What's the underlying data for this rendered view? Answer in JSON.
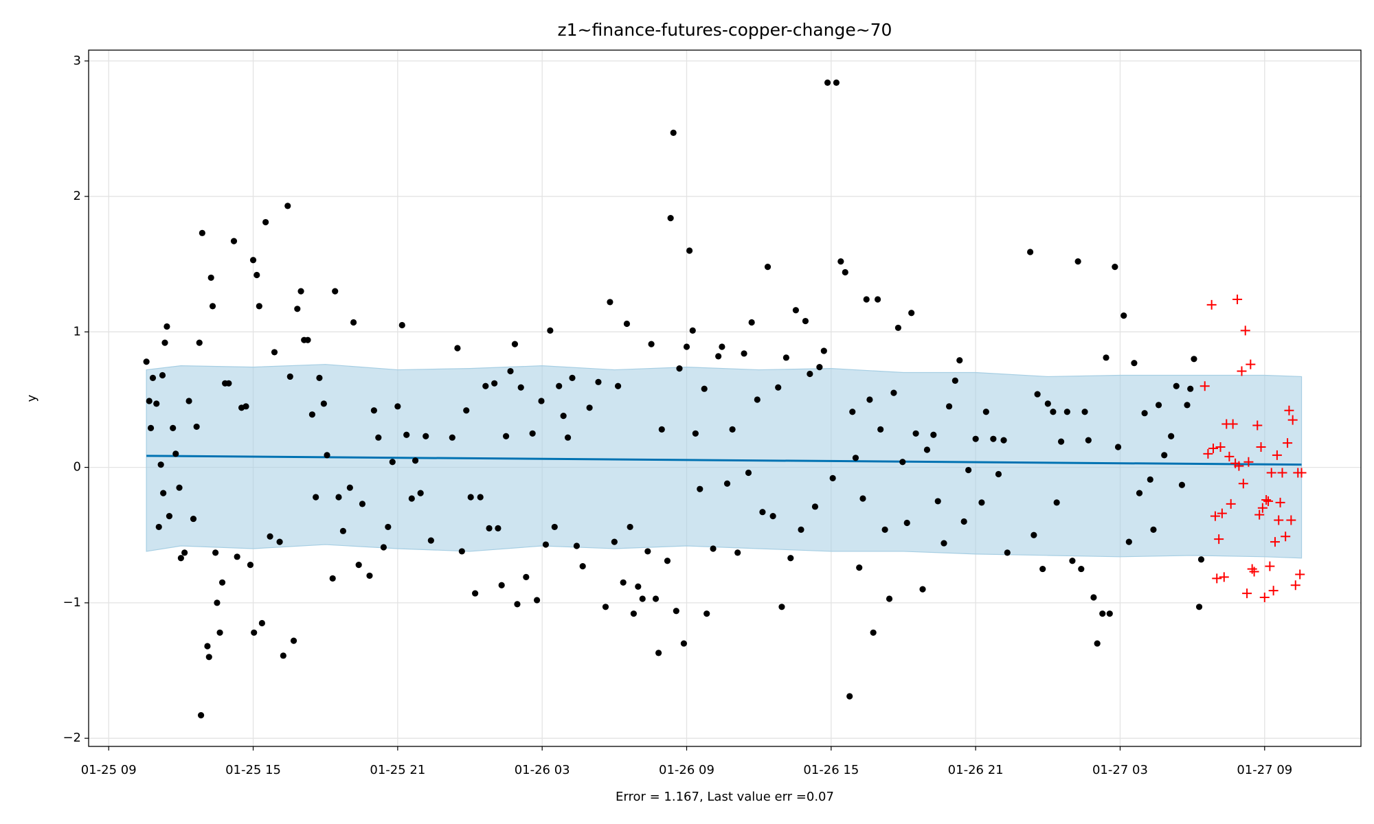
{
  "chart_data": {
    "type": "scatter",
    "title": "z1~finance-futures-copper-change~70",
    "xlabel": "Error = 1.167, Last value err =0.07",
    "ylabel": "y",
    "xlim": [
      "01-25 08:10",
      "01-27 13:00"
    ],
    "xticks": [
      "01-25 09",
      "01-25 15",
      "01-25 21",
      "01-26 03",
      "01-26 09",
      "01-26 15",
      "01-26 21",
      "01-27 03",
      "01-27 09"
    ],
    "ylim": [
      -2.06,
      3.08
    ],
    "yticks": [
      {
        "value": -2,
        "label": "−2"
      },
      {
        "value": -1,
        "label": "−1"
      },
      0,
      1,
      2,
      3
    ],
    "grid": true,
    "series": [
      {
        "type": "band",
        "color": "#a6cee3",
        "x": [
          "01-25 10:34",
          "01-25 12:00",
          "01-25 15:00",
          "01-25 18:00",
          "01-25 21:00",
          "01-26 00:00",
          "01-26 03:00",
          "01-26 06:00",
          "01-26 09:00",
          "01-26 12:00",
          "01-26 15:00",
          "01-26 18:00",
          "01-26 21:00",
          "01-27 00:00",
          "01-27 03:00",
          "01-27 06:00",
          "01-27 09:00",
          "01-27 10:32"
        ],
        "upper": [
          0.72,
          0.75,
          0.74,
          0.76,
          0.72,
          0.73,
          0.75,
          0.72,
          0.74,
          0.72,
          0.73,
          0.7,
          0.7,
          0.67,
          0.68,
          0.68,
          0.68,
          0.67
        ],
        "lower": [
          -0.62,
          -0.58,
          -0.6,
          -0.57,
          -0.6,
          -0.62,
          -0.58,
          -0.6,
          -0.58,
          -0.6,
          -0.62,
          -0.62,
          -0.64,
          -0.65,
          -0.66,
          -0.65,
          -0.66,
          -0.67
        ]
      },
      {
        "type": "line",
        "color": "#0072b2",
        "x": [
          "01-25 10:34",
          "01-27 10:32"
        ],
        "values": [
          0.085,
          0.02
        ]
      },
      {
        "type": "scatter",
        "marker": "dot",
        "color": "#000000",
        "x": [
          "01-25 10:34",
          "01-25 10:41",
          "01-25 10:45",
          "01-25 10:50",
          "01-25 10:59",
          "01-25 11:05",
          "01-25 11:10",
          "01-25 11:14",
          "01-25 11:16",
          "01-25 11:20",
          "01-25 11:25",
          "01-25 11:31",
          "01-25 11:40",
          "01-25 11:47",
          "01-25 11:56",
          "01-25 12:00",
          "01-25 12:09",
          "01-25 12:20",
          "01-25 12:31",
          "01-25 12:39",
          "01-25 12:46",
          "01-25 12:53",
          "01-25 12:50",
          "01-25 13:06",
          "01-25 13:10",
          "01-25 13:15",
          "01-25 13:19",
          "01-25 13:26",
          "01-25 13:30",
          "01-25 13:37",
          "01-25 13:43",
          "01-25 13:50",
          "01-25 13:59",
          "01-25 14:12",
          "01-25 14:20",
          "01-25 14:31",
          "01-25 14:42",
          "01-25 14:53",
          "01-25 15:00",
          "01-25 15:02",
          "01-25 15:09",
          "01-25 15:15",
          "01-25 15:22",
          "01-25 15:31",
          "01-25 15:42",
          "01-25 15:53",
          "01-25 16:06",
          "01-25 16:15",
          "01-25 16:26",
          "01-25 16:32",
          "01-25 16:41",
          "01-25 16:50",
          "01-25 16:59",
          "01-25 17:07",
          "01-25 17:16",
          "01-25 17:27",
          "01-25 17:36",
          "01-25 17:45",
          "01-25 17:56",
          "01-25 18:04",
          "01-25 18:18",
          "01-25 18:24",
          "01-25 18:33",
          "01-25 18:44",
          "01-25 19:01",
          "01-25 19:10",
          "01-25 19:23",
          "01-25 19:32",
          "01-25 19:50",
          "01-25 20:01",
          "01-25 20:12",
          "01-25 20:25",
          "01-25 20:36",
          "01-25 20:47",
          "01-25 21:00",
          "01-25 21:11",
          "01-25 21:22",
          "01-25 21:35",
          "01-25 21:44",
          "01-25 21:57",
          "01-25 22:10",
          "01-25 22:23",
          "01-25 23:16",
          "01-25 23:29",
          "01-25 23:40",
          "01-25 23:51",
          "01-26 00:02",
          "01-26 00:13",
          "01-26 00:26",
          "01-26 00:39",
          "01-26 00:48",
          "01-26 01:01",
          "01-26 01:10",
          "01-26 01:19",
          "01-26 01:30",
          "01-26 01:41",
          "01-26 01:52",
          "01-26 01:58",
          "01-26 02:07",
          "01-26 02:20",
          "01-26 02:36",
          "01-26 02:47",
          "01-26 02:58",
          "01-26 03:09",
          "01-26 03:20",
          "01-26 03:31",
          "01-26 03:42",
          "01-26 03:53",
          "01-26 04:04",
          "01-26 04:15",
          "01-26 04:26",
          "01-26 04:41",
          "01-26 04:58",
          "01-26 05:20",
          "01-26 05:38",
          "01-26 05:49",
          "01-26 06:00",
          "01-26 06:09",
          "01-26 06:22",
          "01-26 06:31",
          "01-26 06:39",
          "01-26 06:48",
          "01-26 06:59",
          "01-26 07:10",
          "01-26 07:23",
          "01-26 07:32",
          "01-26 07:43",
          "01-26 07:50",
          "01-26 07:58",
          "01-26 08:12",
          "01-26 08:20",
          "01-26 08:27",
          "01-26 08:34",
          "01-26 08:42",
          "01-26 08:53",
          "01-26 09:00",
          "01-26 09:07",
          "01-26 09:15",
          "01-26 09:22",
          "01-26 09:33",
          "01-26 09:44",
          "01-26 09:50",
          "01-26 10:06",
          "01-26 10:19",
          "01-26 10:28",
          "01-26 10:41",
          "01-26 10:54",
          "01-26 11:07",
          "01-26 11:23",
          "01-26 11:34",
          "01-26 11:42",
          "01-26 11:56",
          "01-26 12:09",
          "01-26 12:22",
          "01-26 12:35",
          "01-26 12:48",
          "01-26 12:57",
          "01-26 13:08",
          "01-26 13:19",
          "01-26 13:32",
          "01-26 13:45",
          "01-26 13:56",
          "01-26 14:07",
          "01-26 14:20",
          "01-26 14:31",
          "01-26 14:42",
          "01-26 14:51",
          "01-26 15:04",
          "01-26 15:13",
          "01-26 15:24",
          "01-26 15:35",
          "01-26 15:46",
          "01-26 15:53",
          "01-26 16:01",
          "01-26 16:10",
          "01-26 16:19",
          "01-26 16:28",
          "01-26 16:36",
          "01-26 16:45",
          "01-26 16:56",
          "01-26 17:03",
          "01-26 17:14",
          "01-26 17:25",
          "01-26 17:36",
          "01-26 17:47",
          "01-26 17:58",
          "01-26 18:09",
          "01-26 18:20",
          "01-26 18:31",
          "01-26 18:48",
          "01-26 18:59",
          "01-26 19:15",
          "01-26 19:26",
          "01-26 19:41",
          "01-26 19:54",
          "01-26 20:09",
          "01-26 20:20",
          "01-26 20:31",
          "01-26 20:42",
          "01-26 21:00",
          "01-26 21:15",
          "01-26 21:26",
          "01-26 21:44",
          "01-26 21:57",
          "01-26 22:10",
          "01-26 22:19",
          "01-26 23:16",
          "01-26 23:25",
          "01-26 23:34",
          "01-26 23:47",
          "01-27 00:00",
          "01-27 00:13",
          "01-27 00:22",
          "01-27 00:33",
          "01-27 00:48",
          "01-27 01:01",
          "01-27 01:15",
          "01-27 01:23",
          "01-27 01:32",
          "01-27 01:41",
          "01-27 01:54",
          "01-27 02:03",
          "01-27 02:16",
          "01-27 02:25",
          "01-27 02:34",
          "01-27 02:47",
          "01-27 02:55",
          "01-27 03:09",
          "01-27 03:22",
          "01-27 03:35",
          "01-27 03:48",
          "01-27 04:01",
          "01-27 04:15",
          "01-27 04:23",
          "01-27 04:36",
          "01-27 04:50",
          "01-27 05:07",
          "01-27 05:20",
          "01-27 05:34",
          "01-27 05:47",
          "01-27 05:55",
          "01-27 06:04",
          "01-27 06:17",
          "01-27 06:22"
        ],
        "values": [
          0.78,
          0.49,
          0.29,
          0.66,
          0.47,
          -0.44,
          0.02,
          0.68,
          -0.19,
          0.92,
          1.04,
          -0.36,
          0.29,
          0.1,
          -0.15,
          -0.67,
          -0.63,
          0.49,
          -0.38,
          0.3,
          0.92,
          1.73,
          -1.83,
          -1.32,
          -1.4,
          1.4,
          1.19,
          -0.63,
          -1.0,
          -1.22,
          -0.85,
          0.62,
          0.62,
          1.67,
          -0.66,
          0.44,
          0.45,
          -0.72,
          1.53,
          -1.22,
          1.42,
          1.19,
          -1.15,
          1.81,
          -0.51,
          0.85,
          -0.55,
          -1.39,
          1.93,
          0.67,
          -1.28,
          1.17,
          1.3,
          0.94,
          0.94,
          0.39,
          -0.22,
          0.66,
          0.47,
          0.09,
          -0.82,
          1.3,
          -0.22,
          -0.47,
          -0.15,
          1.07,
          -0.72,
          -0.27,
          -0.8,
          0.42,
          0.22,
          -0.59,
          -0.44,
          0.04,
          0.45,
          1.05,
          0.24,
          -0.23,
          0.05,
          -0.19,
          0.23,
          -0.54,
          0.22,
          0.88,
          -0.62,
          0.42,
          -0.22,
          -0.93,
          -0.22,
          0.6,
          -0.45,
          0.62,
          -0.45,
          -0.87,
          0.23,
          0.71,
          0.91,
          -1.01,
          0.59,
          -0.81,
          0.25,
          -0.98,
          0.49,
          -0.57,
          1.01,
          -0.44,
          0.6,
          0.38,
          0.22,
          0.66,
          -0.58,
          -0.73,
          0.44,
          0.63,
          -1.03,
          1.22,
          -0.55,
          0.6,
          -0.85,
          1.06,
          -0.44,
          -1.08,
          -0.88,
          -0.97,
          -0.62,
          0.91,
          -0.97,
          -1.37,
          0.28,
          -0.69,
          1.84,
          2.47,
          -1.06,
          0.73,
          -1.3,
          0.89,
          1.6,
          1.01,
          0.25,
          -0.16,
          0.58,
          -1.08,
          -0.6,
          0.82,
          0.89,
          -0.12,
          0.28,
          -0.63,
          0.84,
          -0.04,
          1.07,
          0.5,
          -0.33,
          1.48,
          -0.36,
          0.59,
          -1.03,
          0.81,
          -0.67,
          1.16,
          -0.46,
          1.08,
          0.69,
          -0.29,
          0.74,
          0.86,
          2.84,
          -0.08,
          2.84,
          1.52,
          1.44,
          -1.69,
          0.41,
          0.07,
          -0.74,
          -0.23,
          1.24,
          0.5,
          -1.22,
          1.24,
          0.28,
          -0.46,
          -0.97,
          0.55,
          1.03,
          0.04,
          -0.41,
          1.14,
          0.25,
          -0.9,
          0.13,
          0.24,
          -0.25,
          -0.56,
          0.45,
          0.64,
          0.79,
          -0.4,
          -0.02,
          0.21,
          -0.26,
          0.41,
          0.21,
          -0.05,
          0.2,
          -0.63,
          1.59,
          -0.5,
          0.54,
          -0.75,
          0.47,
          0.41,
          -0.26,
          0.19,
          0.41,
          -0.69,
          1.52,
          -0.75,
          0.41,
          0.2,
          -0.96,
          -1.3,
          -1.08,
          0.81,
          -1.08,
          1.48,
          0.15,
          1.12,
          -0.55,
          0.77,
          -0.19,
          0.4,
          -0.09,
          -0.46,
          0.46,
          0.09,
          0.23,
          0.6,
          -0.13,
          0.46,
          0.58,
          0.8,
          -1.03,
          -0.68
        ]
      },
      {
        "type": "scatter",
        "marker": "plus",
        "color": "#ff0000",
        "x": [
          "01-27 06:31",
          "01-27 06:39",
          "01-27 06:48",
          "01-27 06:52",
          "01-27 06:57",
          "01-27 07:01",
          "01-27 07:06",
          "01-27 07:10",
          "01-27 07:14",
          "01-27 07:19",
          "01-27 07:25",
          "01-27 07:32",
          "01-27 07:36",
          "01-27 07:41",
          "01-27 07:47",
          "01-27 07:52",
          "01-27 07:56",
          "01-27 08:03",
          "01-27 08:07",
          "01-27 08:12",
          "01-27 08:16",
          "01-27 08:20",
          "01-27 08:25",
          "01-27 08:29",
          "01-27 08:34",
          "01-27 08:42",
          "01-27 08:47",
          "01-27 08:51",
          "01-27 08:55",
          "01-27 09:00",
          "01-27 09:04",
          "01-27 09:09",
          "01-27 09:13",
          "01-27 09:17",
          "01-27 09:22",
          "01-27 09:26",
          "01-27 09:31",
          "01-27 09:35",
          "01-27 09:39",
          "01-27 09:44",
          "01-27 09:52",
          "01-27 09:57",
          "01-27 10:01",
          "01-27 10:06",
          "01-27 10:10",
          "01-27 10:17",
          "01-27 10:23",
          "01-27 10:28",
          "01-27 10:32"
        ],
        "values": [
          0.6,
          0.1,
          1.2,
          0.14,
          -0.36,
          -0.82,
          -0.53,
          0.15,
          -0.34,
          -0.81,
          0.32,
          0.08,
          -0.27,
          0.32,
          0.03,
          1.24,
          0.01,
          0.71,
          -0.12,
          1.01,
          -0.93,
          0.04,
          0.76,
          -0.75,
          -0.77,
          0.31,
          -0.35,
          0.15,
          -0.3,
          -0.96,
          -0.24,
          -0.25,
          -0.73,
          -0.04,
          -0.91,
          -0.55,
          0.09,
          -0.39,
          -0.26,
          -0.04,
          -0.51,
          0.18,
          0.42,
          -0.39,
          0.35,
          -0.87,
          -0.04,
          -0.79,
          -0.04
        ]
      }
    ]
  }
}
